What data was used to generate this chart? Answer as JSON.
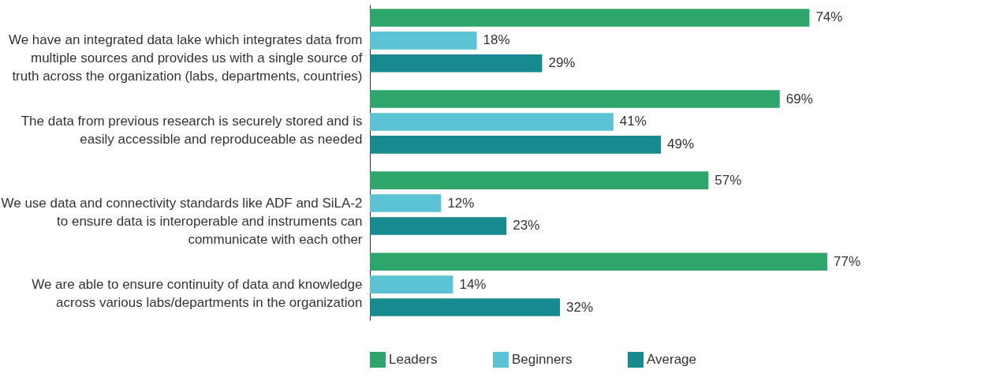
{
  "chart_data": {
    "type": "bar",
    "orientation": "horizontal",
    "legend": "bottom",
    "categories": [
      "We have an integrated data lake which integrates data from multiple sources and provides us with a single source of truth across the organization (labs, departments, countries)",
      "The data from previous research is securely stored and is easily accessible and reproduceable as needed",
      "We use data and connectivity standards like ADF and SiLA-2 to ensure data is interoperable and instruments can communicate with each other",
      "We are able to ensure continuity of data and knowledge across various labs/departments in the organization"
    ],
    "series": [
      {
        "name": "Leaders",
        "color": "#2ea66b",
        "values": [
          74,
          69,
          57,
          77
        ],
        "value_labels": [
          "74%",
          "69%",
          "57%",
          "77%"
        ]
      },
      {
        "name": "Beginners",
        "color": "#5bc3d3",
        "values": [
          18,
          41,
          12,
          14
        ],
        "value_labels": [
          "18%",
          "41%",
          "12%",
          "14%"
        ]
      },
      {
        "name": "Average",
        "color": "#168a8f",
        "values": [
          29,
          49,
          23,
          32
        ],
        "value_labels": [
          "29%",
          "49%",
          "23%",
          "32%"
        ]
      }
    ]
  }
}
